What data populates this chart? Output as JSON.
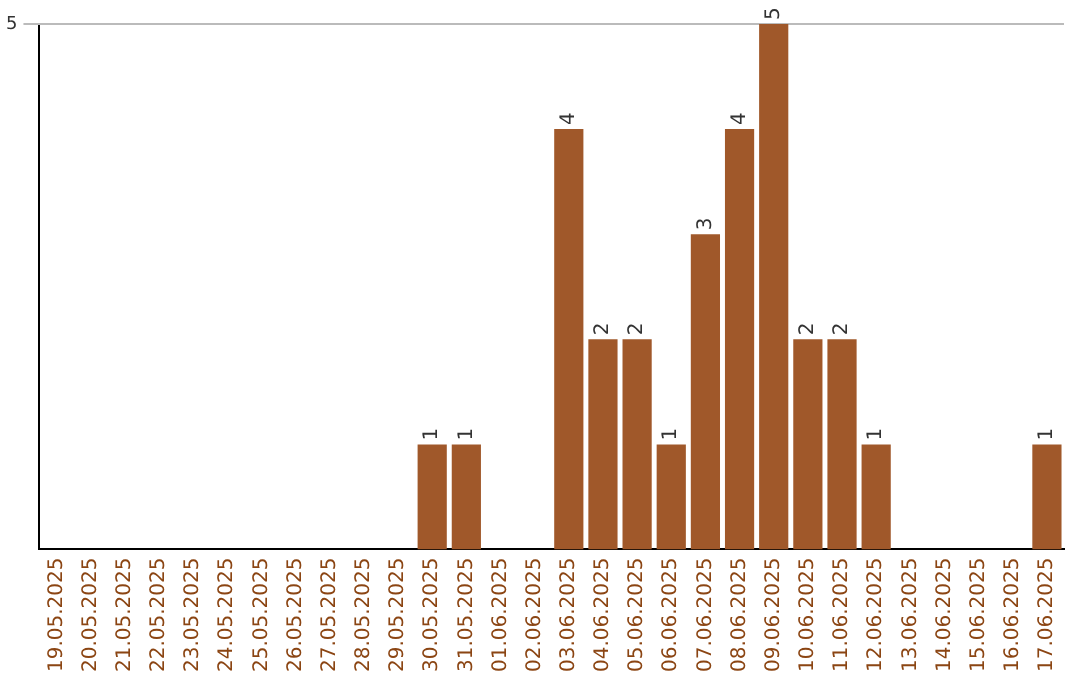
{
  "chart_data": {
    "type": "bar",
    "categories": [
      "19.05.2025",
      "20.05.2025",
      "21.05.2025",
      "22.05.2025",
      "23.05.2025",
      "24.05.2025",
      "25.05.2025",
      "26.05.2025",
      "27.05.2025",
      "28.05.2025",
      "29.05.2025",
      "30.05.2025",
      "31.05.2025",
      "01.06.2025",
      "02.06.2025",
      "03.06.2025",
      "04.06.2025",
      "05.06.2025",
      "06.06.2025",
      "07.06.2025",
      "08.06.2025",
      "09.06.2025",
      "10.06.2025",
      "11.06.2025",
      "12.06.2025",
      "13.06.2025",
      "14.06.2025",
      "15.06.2025",
      "16.06.2025",
      "17.06.2025"
    ],
    "values": [
      0,
      0,
      0,
      0,
      0,
      0,
      0,
      0,
      0,
      0,
      0,
      1,
      1,
      0,
      0,
      4,
      2,
      2,
      1,
      3,
      4,
      5,
      2,
      2,
      1,
      0,
      0,
      0,
      0,
      1
    ],
    "value_labels": [
      null,
      null,
      null,
      null,
      null,
      null,
      null,
      null,
      null,
      null,
      null,
      "1",
      "1",
      null,
      null,
      "4",
      "2",
      "2",
      "1",
      "3",
      "4",
      "5",
      "2",
      "2",
      "1",
      null,
      null,
      null,
      null,
      "1"
    ],
    "color": "#a0582a",
    "ylim": [
      0,
      5
    ],
    "yticks": [
      5
    ],
    "ref_lines": [
      {
        "axis": "y",
        "value": 5,
        "color": "#bbbbbb"
      }
    ]
  }
}
